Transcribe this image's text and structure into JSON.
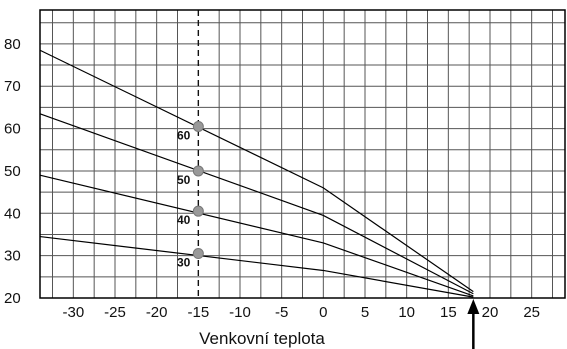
{
  "chart_data": {
    "type": "line",
    "title": "",
    "xlabel": "Venkovní teplota",
    "ylabel": "",
    "xlim": [
      -34,
      29
    ],
    "ylim": [
      20,
      88
    ],
    "grid": true,
    "x_ticks": [
      -30,
      -25,
      -20,
      -15,
      -10,
      -5,
      0,
      5,
      10,
      15,
      20,
      25
    ],
    "y_ticks": [
      20,
      30,
      40,
      50,
      60,
      70,
      80
    ],
    "reference_line_x": -15,
    "arrow_x": 18,
    "series": [
      {
        "name": "60",
        "x": [
          -34,
          0,
          18
        ],
        "y": [
          78.5,
          46,
          21.5
        ],
        "marker_x": -15,
        "marker_y": 60.5
      },
      {
        "name": "50",
        "x": [
          -34,
          0,
          18
        ],
        "y": [
          63.5,
          39.5,
          21
        ],
        "marker_x": -15,
        "marker_y": 50
      },
      {
        "name": "40",
        "x": [
          -34,
          0,
          18
        ],
        "y": [
          49,
          33,
          20.5
        ],
        "marker_x": -15,
        "marker_y": 40.5
      },
      {
        "name": "30",
        "x": [
          -34,
          0,
          18
        ],
        "y": [
          34.5,
          26.5,
          20.2
        ],
        "marker_x": -15,
        "marker_y": 30.5
      }
    ]
  }
}
